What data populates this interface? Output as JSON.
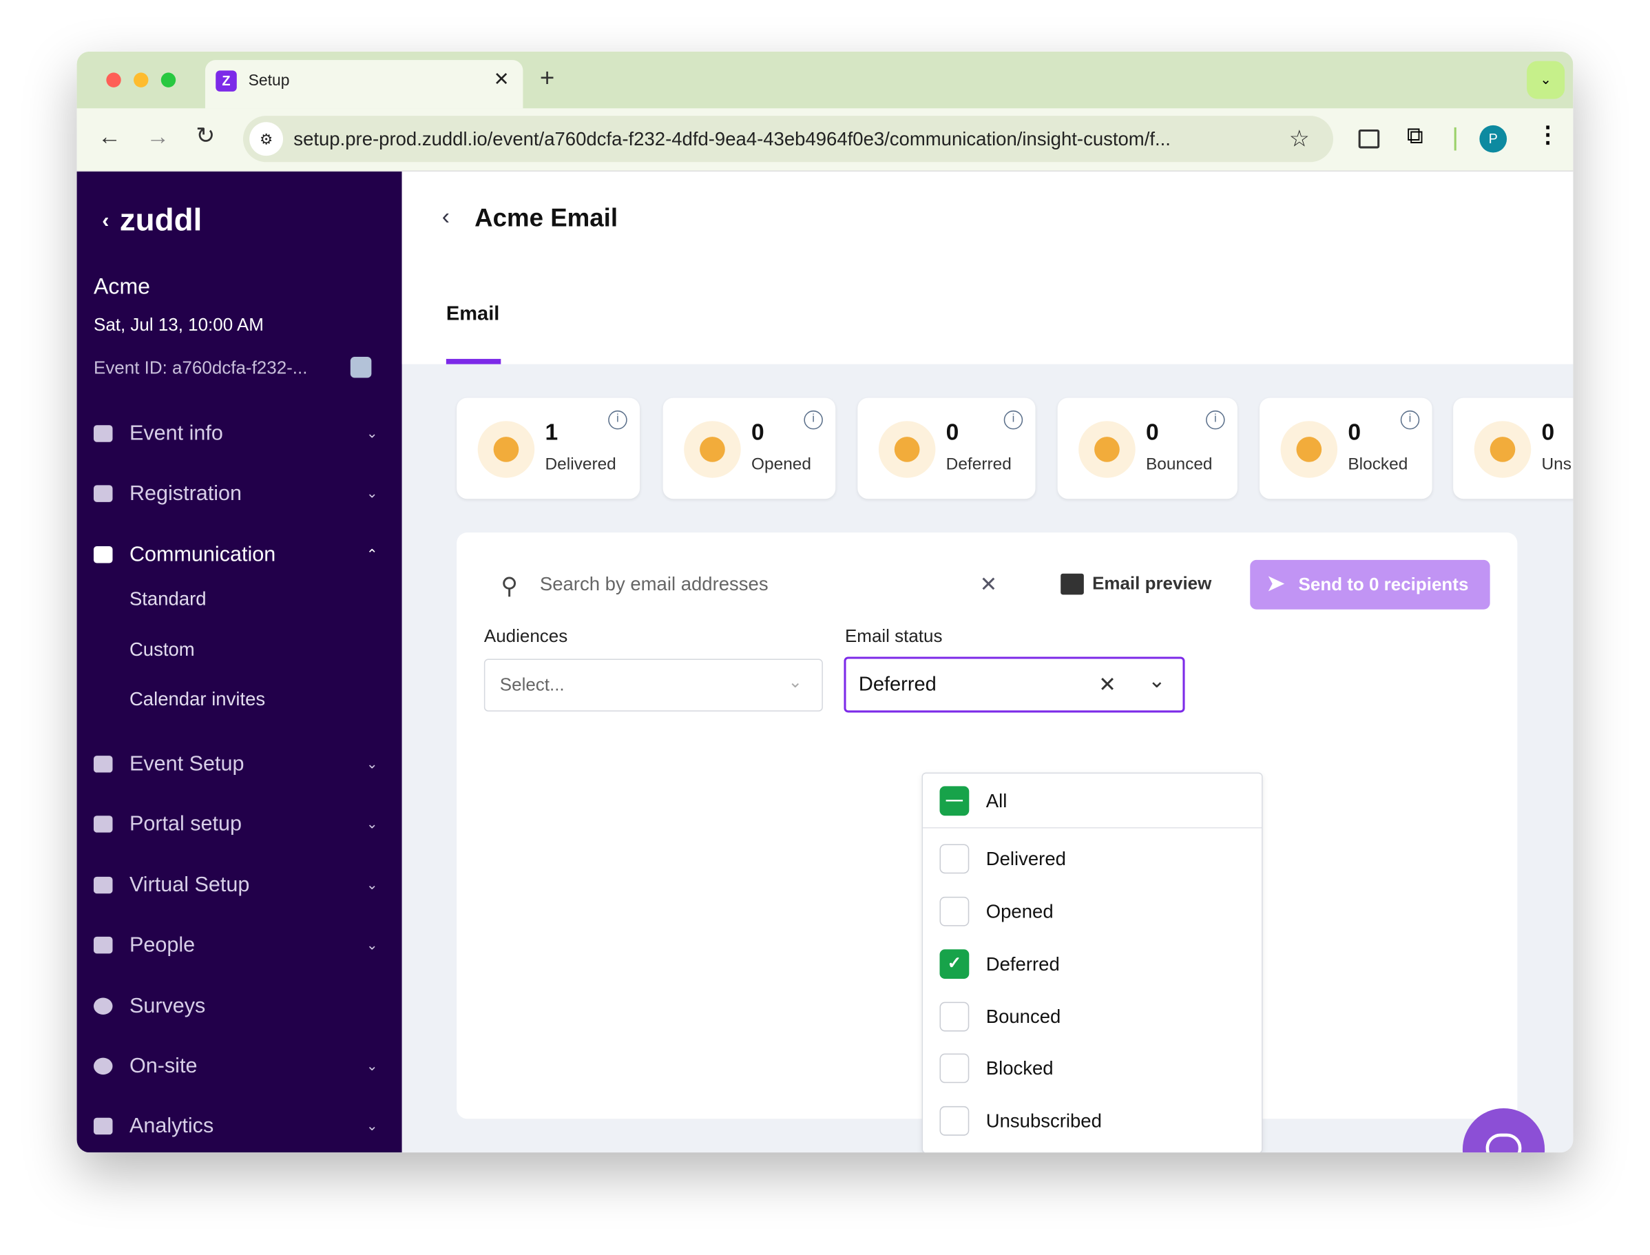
{
  "browser": {
    "tab_title": "Setup",
    "url": "setup.pre-prod.zuddl.io/event/a760dcfa-f232-4dfd-9ea4-43eb4964f0e3/communication/insight-custom/f...",
    "profile_initial": "P"
  },
  "sidebar": {
    "logo": "zuddl",
    "event_name": "Acme",
    "event_date": "Sat, Jul 13, 10:00 AM",
    "event_id": "Event ID: a760dcfa-f232-...",
    "items": [
      {
        "label": "Event info"
      },
      {
        "label": "Registration"
      },
      {
        "label": "Communication",
        "sub": [
          "Standard",
          "Custom",
          "Calendar invites"
        ]
      },
      {
        "label": "Event Setup"
      },
      {
        "label": "Portal setup"
      },
      {
        "label": "Virtual Setup"
      },
      {
        "label": "People"
      },
      {
        "label": "Surveys"
      },
      {
        "label": "On-site"
      },
      {
        "label": "Analytics"
      }
    ]
  },
  "header": {
    "title": "Acme Email",
    "tab": "Email"
  },
  "stats": [
    {
      "count": "1",
      "label": "Delivered",
      "icon": "send-icon"
    },
    {
      "count": "0",
      "label": "Opened",
      "icon": "mail-open-icon"
    },
    {
      "count": "0",
      "label": "Deferred",
      "icon": "clock-icon"
    },
    {
      "count": "0",
      "label": "Bounced",
      "icon": "arrow-right-icon"
    },
    {
      "count": "0",
      "label": "Blocked",
      "icon": "eject-icon"
    },
    {
      "count": "0",
      "label": "Uns",
      "icon": "mail-x-icon"
    }
  ],
  "toolbar": {
    "search_placeholder": "Search by email addresses",
    "email_preview": "Email preview",
    "send_label": "Send to 0 recipients"
  },
  "filters": {
    "audiences_label": "Audiences",
    "audiences_placeholder": "Select...",
    "status_label": "Email status",
    "status_value": "Deferred"
  },
  "dropdown": {
    "options": [
      {
        "label": "All",
        "state": "indeterminate"
      },
      {
        "label": "Delivered",
        "state": "unchecked"
      },
      {
        "label": "Opened",
        "state": "unchecked"
      },
      {
        "label": "Deferred",
        "state": "checked"
      },
      {
        "label": "Bounced",
        "state": "unchecked"
      },
      {
        "label": "Blocked",
        "state": "unchecked"
      },
      {
        "label": "Unsubscribed",
        "state": "unchecked"
      }
    ]
  },
  "colors": {
    "sidebar": "#22004a",
    "accent": "#7c2ae8",
    "send_button": "#c194f4",
    "stat_icon": "#f2ac3b",
    "check": "#17a34a"
  }
}
